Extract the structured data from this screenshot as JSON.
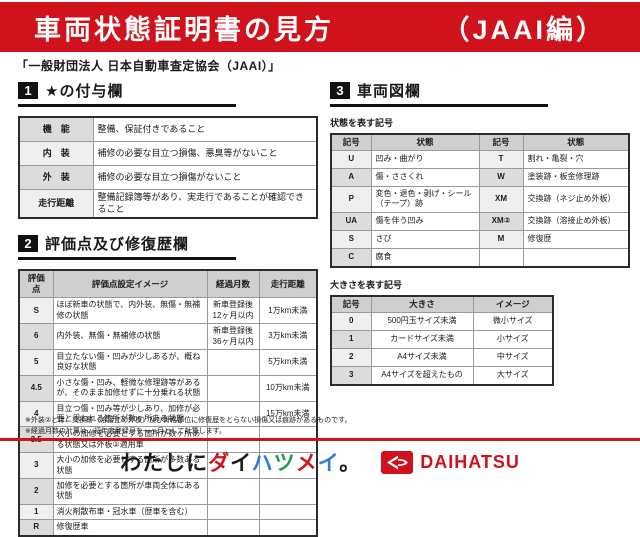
{
  "header": {
    "title_main": "車両状態証明書の見方",
    "title_sub": "（JAAI編）"
  },
  "org_line": "「一般財団法人 日本自動車査定協会（JAAI）」",
  "s1": {
    "num": "1",
    "title": "★の付与欄",
    "rows": [
      [
        "機　能",
        "整備、保証付きであること"
      ],
      [
        "内　装",
        "補修の必要な目立つ損傷、悪臭等がないこと"
      ],
      [
        "外　装",
        "補修の必要な目立つ損傷がないこと"
      ],
      [
        "走行距離",
        "整備記録簿等があり、実走行であることが確認できること"
      ]
    ]
  },
  "s2": {
    "num": "2",
    "title": "評価点及び修復歴欄",
    "headers": [
      "評価点",
      "評価点設定イメージ",
      "経過月数",
      "走行距離"
    ],
    "rows": [
      [
        "S",
        "ほぼ新車の状態で、内外装、無傷・無補修の状態",
        "新車登録後12ヶ月以内",
        "1万km未満"
      ],
      [
        "6",
        "内外装、無傷・無補修の状態",
        "新車登録後36ヶ月以内",
        "3万km未満"
      ],
      [
        "5",
        "目立たない傷・凹みが少しあるが、概ね良好な状態",
        "",
        "5万km未満"
      ],
      [
        "4.5",
        "小さな傷・凹み、軽微な修理跡等があるが、そのまま加修せずに十分乗れる状態",
        "",
        "10万km未満"
      ],
      [
        "4",
        "目立つ傷・凹み等が少しあり、加修が必要と思われる箇所が数ヶ所ある状態",
        "",
        "15万km未満"
      ],
      [
        "3.5",
        "大小の加修を必要とする箇所が数ヶ所ある状態又は外板②適用車",
        "",
        ""
      ],
      [
        "3",
        "大小の加修を必要とする箇所が多数ある状態",
        "",
        ""
      ],
      [
        "2",
        "加修を必要とする箇所が車両全体にある状態",
        "",
        ""
      ],
      [
        "1",
        "消火剤散布車・冠水車（歴車を含む）",
        "",
        ""
      ],
      [
        "R",
        "修復歴車",
        "",
        ""
      ]
    ]
  },
  "s3": {
    "num": "3",
    "title": "車両図欄",
    "state_label": "状態を表す記号",
    "state_headers": [
      "記号",
      "状態",
      "記号",
      "状態"
    ],
    "state_rows": [
      [
        "U",
        "凹み・曲がり",
        "T",
        "割れ・亀裂・穴"
      ],
      [
        "A",
        "傷・ささくれ",
        "W",
        "塗装跡・板金修理跡"
      ],
      [
        "P",
        "変色・退色・剥げ・シール（テープ）跡",
        "XM",
        "交換跡（ネジ止め外板）"
      ],
      [
        "UA",
        "傷を伴う凹み",
        "XM②",
        "交換跡（溶接止め外板）"
      ],
      [
        "S",
        "さび",
        "M",
        "修復歴"
      ],
      [
        "C",
        "腐食",
        "",
        ""
      ]
    ],
    "size_label": "大きさを表す記号",
    "size_headers": [
      "記号",
      "大きさ",
      "イメージ"
    ],
    "size_rows": [
      [
        "0",
        "500円玉サイズ未満",
        "微小サイズ"
      ],
      [
        "1",
        "カードサイズ未満",
        "小サイズ"
      ],
      [
        "2",
        "A4サイズ未満",
        "中サイズ"
      ],
      [
        "3",
        "A4サイズを超えたもの",
        "大サイズ"
      ]
    ]
  },
  "footnotes": [
    "※外装②とは、交換跡（溶接止め外板）及び骨格部位に修復歴をとらない損傷又は痕跡があるものです。",
    "※経過月数の計算は、初年度登録月を一ヶ月として計算します。"
  ],
  "footer": {
    "slogan": "わたしにダイハツメイ。",
    "slogan_colors": [
      "#1a1a1a",
      "#1a1a1a",
      "#1a1a1a",
      "#1a1a1a",
      "#d0121d",
      "#1a1a1a",
      "#2a7de1",
      "#1a9e49",
      "#d0121d",
      "#2a7de1",
      "#1a1a1a"
    ],
    "brand": "DAIHATSU"
  },
  "colors": {
    "accent_red": "#d0121d",
    "badge_black": "#111111",
    "table_header_grey": "#cfcfcf"
  }
}
